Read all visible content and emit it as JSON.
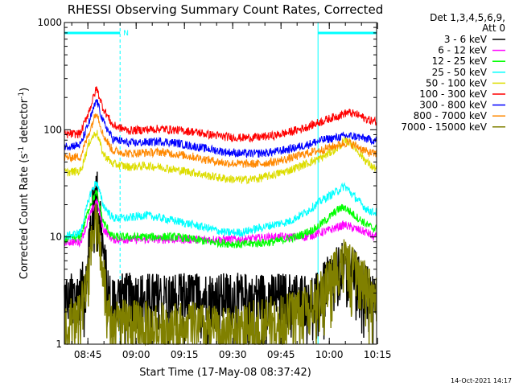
{
  "chart_data": {
    "type": "line",
    "title": "RHESSI Observing Summary Count Rates, Corrected",
    "xlabel": "Start Time (17-May-08 08:37:42)",
    "ylabel_prefix": "Corrected Count Rate (s",
    "ylabel_sup1": "-1",
    "ylabel_mid": " detector",
    "ylabel_sup2": "-1",
    "ylabel_suffix": ")",
    "yscale": "log",
    "ylim": [
      1,
      1000
    ],
    "xlim_minutes": [
      0,
      97
    ],
    "x_unit": "minutes after 08:37:42",
    "yticks": [
      {
        "value": 1,
        "label": "1"
      },
      {
        "value": 10,
        "label": "10"
      },
      {
        "value": 100,
        "label": "100"
      },
      {
        "value": 1000,
        "label": "1000"
      }
    ],
    "xticks": [
      {
        "minute": 7.3,
        "label": "08:45"
      },
      {
        "minute": 22.3,
        "label": "09:00"
      },
      {
        "minute": 37.3,
        "label": "09:15"
      },
      {
        "minute": 52.3,
        "label": "09:30"
      },
      {
        "minute": 67.3,
        "label": "09:45"
      },
      {
        "minute": 82.3,
        "label": "10:00"
      },
      {
        "minute": 97.3,
        "label": "10:15"
      }
    ],
    "legend_header": [
      "Det 1,3,4,5,6,9,",
      "Att 0"
    ],
    "legend_position": "right",
    "night_intervals": [
      {
        "start": 0,
        "end": 17.3,
        "flag": "N"
      },
      {
        "start": 78.8,
        "end": 97,
        "flag": ""
      }
    ],
    "series": [
      {
        "name": "3 - 6 keV",
        "color": "#000000",
        "points": [
          [
            0,
            3
          ],
          [
            4,
            3
          ],
          [
            6,
            4
          ],
          [
            8,
            12
          ],
          [
            9,
            22
          ],
          [
            10,
            30
          ],
          [
            11,
            20
          ],
          [
            12,
            8
          ],
          [
            14,
            3
          ],
          [
            20,
            3
          ],
          [
            40,
            3
          ],
          [
            60,
            3
          ],
          [
            75,
            3
          ],
          [
            79,
            3
          ],
          [
            81,
            4
          ],
          [
            84,
            5
          ],
          [
            87,
            6
          ],
          [
            90,
            5
          ],
          [
            93,
            4
          ],
          [
            96,
            3
          ]
        ]
      },
      {
        "name": "6 - 12 keV",
        "color": "#ff00ff",
        "points": [
          [
            0,
            9
          ],
          [
            5,
            9
          ],
          [
            8,
            16
          ],
          [
            10,
            22
          ],
          [
            12,
            12
          ],
          [
            15,
            9.5
          ],
          [
            25,
            9.5
          ],
          [
            35,
            9.5
          ],
          [
            45,
            9.5
          ],
          [
            55,
            9.5
          ],
          [
            65,
            10
          ],
          [
            75,
            10
          ],
          [
            82,
            11.5
          ],
          [
            87,
            13
          ],
          [
            90,
            12
          ],
          [
            94,
            11
          ],
          [
            96,
            10
          ]
        ]
      },
      {
        "name": "12 - 25 keV",
        "color": "#00ff00",
        "points": [
          [
            0,
            9.5
          ],
          [
            5,
            10
          ],
          [
            8,
            20
          ],
          [
            10,
            26
          ],
          [
            12,
            14
          ],
          [
            15,
            10
          ],
          [
            25,
            10
          ],
          [
            35,
            10
          ],
          [
            45,
            9
          ],
          [
            55,
            8.5
          ],
          [
            65,
            9
          ],
          [
            72,
            10
          ],
          [
            78,
            12
          ],
          [
            82,
            15
          ],
          [
            85,
            18
          ],
          [
            87,
            19
          ],
          [
            90,
            16
          ],
          [
            94,
            13
          ],
          [
            96,
            12
          ]
        ]
      },
      {
        "name": "25 - 50 keV",
        "color": "#00ffff",
        "points": [
          [
            0,
            10
          ],
          [
            5,
            11
          ],
          [
            8,
            25
          ],
          [
            10,
            33
          ],
          [
            12,
            20
          ],
          [
            15,
            15
          ],
          [
            20,
            15
          ],
          [
            25,
            16
          ],
          [
            30,
            15
          ],
          [
            35,
            14
          ],
          [
            40,
            13
          ],
          [
            45,
            12
          ],
          [
            50,
            11
          ],
          [
            55,
            11
          ],
          [
            60,
            12
          ],
          [
            65,
            13
          ],
          [
            70,
            14
          ],
          [
            75,
            17
          ],
          [
            80,
            22
          ],
          [
            85,
            27
          ],
          [
            87,
            30
          ],
          [
            90,
            24
          ],
          [
            94,
            18
          ],
          [
            96,
            17
          ]
        ]
      },
      {
        "name": "50 - 100 keV",
        "color": "#dddd00",
        "points": [
          [
            0,
            40
          ],
          [
            5,
            41
          ],
          [
            8,
            80
          ],
          [
            10,
            96
          ],
          [
            12,
            60
          ],
          [
            15,
            48
          ],
          [
            20,
            45
          ],
          [
            25,
            46
          ],
          [
            30,
            45
          ],
          [
            35,
            42
          ],
          [
            40,
            40
          ],
          [
            45,
            37
          ],
          [
            50,
            35
          ],
          [
            55,
            34
          ],
          [
            60,
            35
          ],
          [
            65,
            38
          ],
          [
            70,
            42
          ],
          [
            75,
            48
          ],
          [
            80,
            55
          ],
          [
            85,
            68
          ],
          [
            87,
            78
          ],
          [
            89,
            76
          ],
          [
            91,
            64
          ],
          [
            94,
            50
          ],
          [
            96,
            44
          ]
        ]
      },
      {
        "name": "100 - 300 keV",
        "color": "#ff0000",
        "points": [
          [
            0,
            90
          ],
          [
            5,
            92
          ],
          [
            8,
            160
          ],
          [
            10,
            245
          ],
          [
            12,
            160
          ],
          [
            15,
            110
          ],
          [
            20,
            98
          ],
          [
            25,
            100
          ],
          [
            30,
            102
          ],
          [
            35,
            99
          ],
          [
            40,
            96
          ],
          [
            45,
            90
          ],
          [
            50,
            86
          ],
          [
            55,
            84
          ],
          [
            60,
            85
          ],
          [
            65,
            88
          ],
          [
            70,
            95
          ],
          [
            75,
            105
          ],
          [
            80,
            120
          ],
          [
            85,
            135
          ],
          [
            88,
            145
          ],
          [
            91,
            138
          ],
          [
            94,
            125
          ],
          [
            96,
            120
          ]
        ]
      },
      {
        "name": "300 - 800 keV",
        "color": "#0000ff",
        "points": [
          [
            0,
            70
          ],
          [
            5,
            72
          ],
          [
            8,
            125
          ],
          [
            10,
            190
          ],
          [
            12,
            120
          ],
          [
            15,
            82
          ],
          [
            20,
            75
          ],
          [
            25,
            76
          ],
          [
            30,
            78
          ],
          [
            35,
            75
          ],
          [
            40,
            70
          ],
          [
            45,
            66
          ],
          [
            50,
            62
          ],
          [
            55,
            60
          ],
          [
            60,
            60
          ],
          [
            65,
            62
          ],
          [
            70,
            66
          ],
          [
            75,
            72
          ],
          [
            80,
            80
          ],
          [
            85,
            85
          ],
          [
            88,
            88
          ],
          [
            91,
            86
          ],
          [
            94,
            82
          ],
          [
            96,
            80
          ]
        ]
      },
      {
        "name": "800 - 7000 keV",
        "color": "#ff8800",
        "points": [
          [
            0,
            55
          ],
          [
            5,
            56
          ],
          [
            8,
            100
          ],
          [
            10,
            150
          ],
          [
            12,
            90
          ],
          [
            15,
            64
          ],
          [
            20,
            60
          ],
          [
            25,
            61
          ],
          [
            30,
            62
          ],
          [
            35,
            59
          ],
          [
            40,
            56
          ],
          [
            45,
            52
          ],
          [
            50,
            49
          ],
          [
            55,
            48
          ],
          [
            60,
            48
          ],
          [
            65,
            50
          ],
          [
            70,
            54
          ],
          [
            75,
            60
          ],
          [
            80,
            65
          ],
          [
            85,
            72
          ],
          [
            88,
            76
          ],
          [
            91,
            70
          ],
          [
            94,
            62
          ],
          [
            96,
            60
          ]
        ]
      },
      {
        "name": "7000 - 15000 keV",
        "color": "#808000",
        "points": [
          [
            0,
            1.8
          ],
          [
            4,
            1.8
          ],
          [
            7,
            4
          ],
          [
            9,
            12
          ],
          [
            10,
            14
          ],
          [
            11,
            10
          ],
          [
            13,
            3
          ],
          [
            15,
            1.6
          ],
          [
            20,
            1.7
          ],
          [
            30,
            1.6
          ],
          [
            40,
            1.6
          ],
          [
            50,
            1.4
          ],
          [
            60,
            1.7
          ],
          [
            70,
            2
          ],
          [
            76,
            2.5
          ],
          [
            79,
            3
          ],
          [
            82,
            4
          ],
          [
            85,
            6
          ],
          [
            87,
            6.5
          ],
          [
            90,
            5
          ],
          [
            93,
            4
          ],
          [
            96,
            3
          ]
        ]
      }
    ]
  },
  "footer_date": "14-Oct-2021 14:17"
}
